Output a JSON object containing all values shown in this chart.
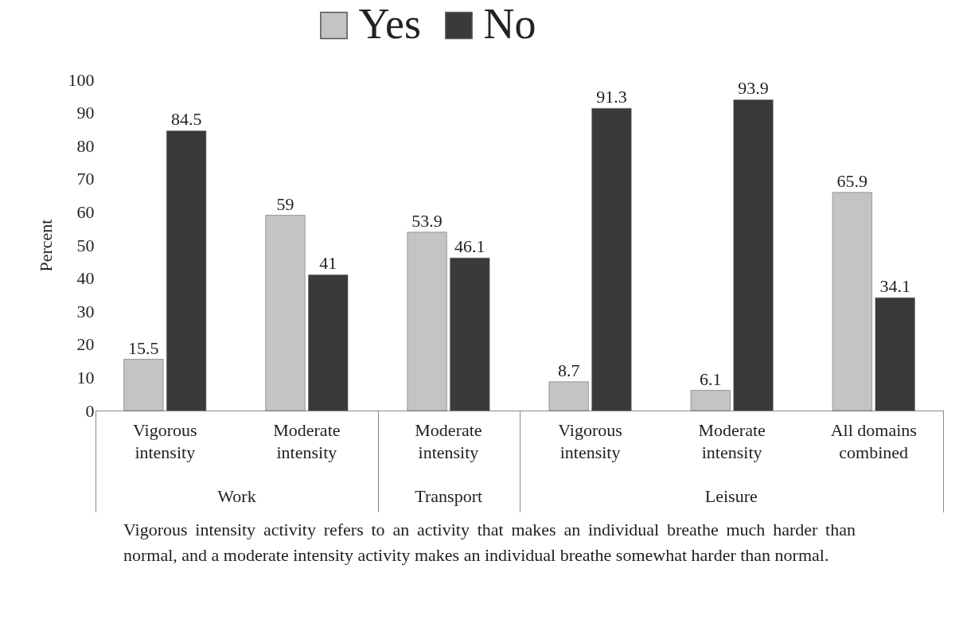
{
  "chart_data": {
    "type": "bar",
    "ylabel": "Percent",
    "categories": [
      "Vigorous intensity",
      "Moderate intensity",
      "Moderate intensity",
      "Vigorous intensity",
      "Moderate intensity",
      "All domains combined"
    ],
    "series": [
      {
        "name": "Yes",
        "color": "#c4c4c4",
        "values": [
          15.5,
          59,
          53.9,
          8.7,
          6.1,
          65.9
        ]
      },
      {
        "name": "No",
        "color": "#3a3a3a",
        "values": [
          84.5,
          41,
          46.1,
          91.3,
          93.9,
          34.1
        ]
      }
    ],
    "ylim": [
      0,
      100
    ],
    "yticks": [
      0,
      10,
      20,
      30,
      40,
      50,
      60,
      70,
      80,
      90,
      100
    ],
    "grid": false,
    "legend": "top",
    "data_labels": true,
    "annotations": [
      "Work",
      "Transport",
      "Leisure",
      "Vigorous intensity activity refers to an activity that makes an individual breathe much harder than normal, and a moderate intensity activity makes an individual breathe somewhat harder than normal."
    ]
  }
}
